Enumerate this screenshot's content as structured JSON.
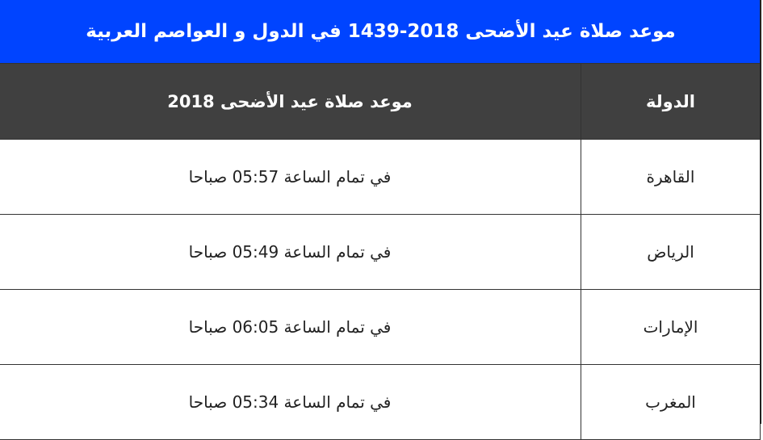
{
  "banner": {
    "title": "موعد صلاة عيد الأضحى 2018-1439 في الدول و العواصم العربية",
    "color": "#0044ff"
  },
  "table": {
    "headers": [
      "الدولة",
      "موعد صلاة عيد الأضحى 2018"
    ],
    "rows": [
      {
        "country": "القاهرة",
        "time": "في تمام الساعة 05:57 صباحا"
      },
      {
        "country": "الرياض",
        "time": "في تمام الساعة 05:49 صباحا"
      },
      {
        "country": "الإمارات",
        "time": "في تمام الساعة 06:05 صباحا"
      },
      {
        "country": "المغرب",
        "time": "في تمام الساعة 05:34 صباحا"
      }
    ]
  }
}
